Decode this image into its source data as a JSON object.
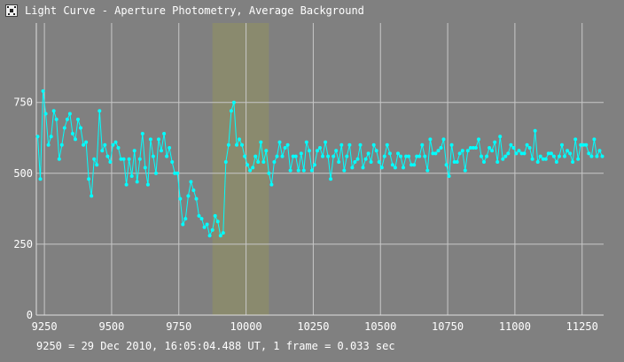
{
  "window": {
    "title": "Light Curve - Aperture Photometry, Average Background",
    "icon": "light-curve-app-icon"
  },
  "footer": {
    "info": "9250 = 29 Dec 2010, 16:05:04.488 UT, 1 frame = 0.033 sec"
  },
  "chart_data": {
    "type": "line",
    "title": "",
    "xlabel": "",
    "ylabel": "",
    "xlim": [
      9220,
      11330
    ],
    "ylim": [
      0,
      1030
    ],
    "x_ticks": [
      9250,
      9500,
      9750,
      10000,
      10250,
      10500,
      10750,
      11000,
      11250
    ],
    "y_ticks": [
      0,
      250,
      500,
      750
    ],
    "grid": true,
    "background": "#808080",
    "grid_color": "#c8c8c8",
    "series_color": "#00ffff",
    "highlight": {
      "x_start": 9875,
      "x_end": 10085,
      "color": "#8a8a6e"
    },
    "series": [
      {
        "x_start": 9225,
        "x_step": 10,
        "values": [
          630,
          480,
          790,
          710,
          600,
          630,
          720,
          690,
          550,
          600,
          660,
          690,
          710,
          640,
          620,
          690,
          660,
          600,
          610,
          480,
          420,
          550,
          530,
          720,
          580,
          600,
          560,
          540,
          600,
          610,
          590,
          550,
          550,
          460,
          550,
          490,
          580,
          470,
          550,
          640,
          520,
          460,
          620,
          560,
          500,
          620,
          580,
          640,
          560,
          590,
          540,
          500,
          500,
          410,
          320,
          340,
          420,
          470,
          440,
          410,
          350,
          340,
          310,
          320,
          280,
          300,
          350,
          330,
          280,
          290,
          540,
          600,
          720,
          750,
          600,
          620,
          600,
          560,
          530,
          510,
          520,
          560,
          540,
          610,
          540,
          580,
          500,
          460,
          540,
          560,
          610,
          560,
          590,
          600,
          510,
          560,
          560,
          510,
          570,
          510,
          610,
          580,
          510,
          530,
          580,
          590,
          560,
          610,
          560,
          480,
          560,
          580,
          540,
          600,
          510,
          560,
          600,
          520,
          540,
          550,
          600,
          520,
          550,
          570,
          540,
          600,
          580,
          540,
          520,
          560,
          600,
          570,
          530,
          520,
          570,
          560,
          520,
          560,
          560,
          530,
          530,
          560,
          560,
          600,
          560,
          510,
          620,
          570,
          570,
          580,
          590,
          620,
          530,
          490,
          600,
          540,
          540,
          570,
          580,
          510,
          580,
          590,
          590,
          590,
          620,
          560,
          540,
          560,
          590,
          580,
          610,
          540,
          630,
          550,
          560,
          570,
          600,
          590,
          570,
          580,
          570,
          570,
          600,
          590,
          550,
          650,
          540,
          560,
          550,
          550,
          570,
          570,
          560,
          540,
          560,
          600,
          560,
          580,
          570,
          540,
          620,
          550,
          600,
          600,
          600,
          570,
          560,
          620,
          560,
          580,
          560
        ]
      }
    ]
  }
}
